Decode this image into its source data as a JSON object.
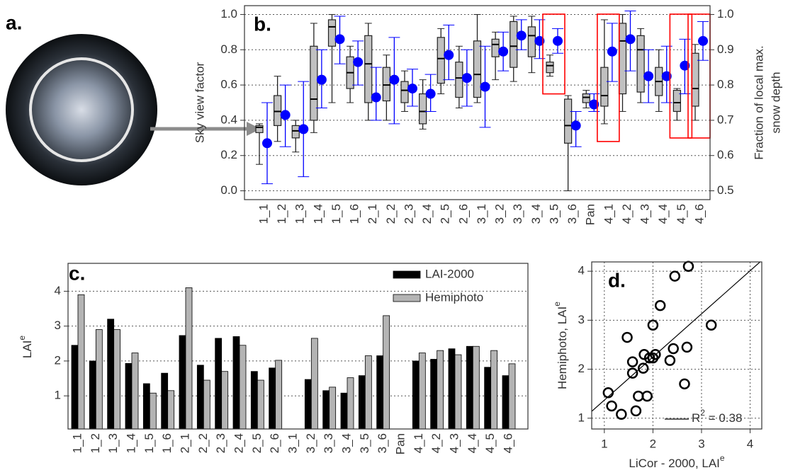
{
  "chart_data": [
    {
      "type": "image",
      "label": "a."
    },
    {
      "type": "box",
      "label": "b.",
      "ylabel": "Sky view factor",
      "y2label": [
        "Fraction of local max.",
        "snow depth"
      ],
      "categories": [
        "1_1",
        "1_2",
        "1_3",
        "1_4",
        "1_5",
        "1_6",
        "2_1",
        "2_2",
        "2_3",
        "2_4",
        "2_5",
        "2_6",
        "3_1",
        "3_2",
        "3_3",
        "3_4",
        "3_5",
        "3_6",
        "Pan",
        "4_1",
        "4_2",
        "4_3",
        "4_4",
        "4_5",
        "4_6"
      ],
      "boxes": {
        "color": "#c0c0c0",
        "whisker_low": [
          0.15,
          0.28,
          0.22,
          0.33,
          0.5,
          0.5,
          0.4,
          0.4,
          0.45,
          0.35,
          0.55,
          0.47,
          0.5,
          0.63,
          0.62,
          0.67,
          0.65,
          0.0,
          0.47,
          0.38,
          0.45,
          0.5,
          0.45,
          0.4,
          0.4
        ],
        "q1": [
          0.33,
          0.37,
          0.3,
          0.4,
          0.82,
          0.58,
          0.5,
          0.51,
          0.5,
          0.38,
          0.61,
          0.53,
          0.53,
          0.76,
          0.7,
          0.76,
          0.67,
          0.27,
          0.5,
          0.48,
          0.55,
          0.56,
          0.54,
          0.45,
          0.48
        ],
        "median": [
          0.36,
          0.45,
          0.34,
          0.52,
          0.93,
          0.67,
          0.72,
          0.6,
          0.57,
          0.45,
          0.75,
          0.64,
          0.66,
          0.83,
          0.82,
          0.88,
          0.71,
          0.37,
          0.53,
          0.54,
          0.85,
          0.8,
          0.62,
          0.5,
          0.58
        ],
        "q3": [
          0.37,
          0.54,
          0.37,
          0.82,
          0.97,
          0.76,
          0.88,
          0.7,
          0.62,
          0.55,
          0.87,
          0.73,
          0.85,
          0.86,
          0.96,
          0.93,
          0.73,
          0.52,
          0.55,
          0.7,
          0.95,
          0.88,
          0.7,
          0.57,
          0.78
        ],
        "whisker_high": [
          0.38,
          0.65,
          0.4,
          0.95,
          1.0,
          0.82,
          0.95,
          0.77,
          0.68,
          0.63,
          0.92,
          0.82,
          1.0,
          0.9,
          0.99,
          0.99,
          0.77,
          0.54,
          0.57,
          0.97,
          1.0,
          0.92,
          0.8,
          0.58,
          0.83
        ]
      },
      "points": {
        "axis": "y2",
        "color": "#0000ff",
        "values": [
          0.635,
          0.715,
          0.675,
          0.815,
          0.93,
          0.865,
          0.765,
          0.815,
          0.79,
          0.775,
          0.885,
          0.82,
          0.795,
          0.895,
          0.94,
          0.925,
          0.925,
          0.685,
          0.745,
          0.895,
          0.93,
          0.825,
          0.825,
          0.855,
          0.925
        ],
        "low": [
          0.52,
          0.625,
          0.54,
          0.735,
          0.86,
          0.8,
          0.7,
          0.69,
          0.74,
          0.725,
          0.815,
          0.74,
          0.68,
          0.84,
          0.9,
          0.875,
          0.89,
          0.625,
          0.725,
          0.81,
          0.84,
          0.75,
          0.75,
          0.775,
          0.87
        ],
        "high": [
          0.75,
          0.8,
          0.81,
          0.9,
          0.995,
          0.925,
          0.85,
          0.935,
          0.845,
          0.83,
          0.97,
          0.9,
          0.91,
          0.95,
          0.985,
          0.985,
          0.96,
          0.725,
          0.775,
          0.975,
          1.01,
          0.9,
          0.91,
          0.93,
          0.98
        ]
      },
      "highlight": [
        16,
        19,
        23,
        24
      ],
      "highlight_color": "#ff0000",
      "ylim": [
        -0.05,
        1.05
      ],
      "yticks": [
        {
          "value": 0,
          "label": "0.0"
        },
        0.2,
        0.4,
        0.6,
        0.8,
        {
          "value": 1,
          "label": "1.0"
        }
      ],
      "y2lim": [
        0.475,
        1.025
      ],
      "y2ticks": [
        0.5,
        0.6,
        0.7,
        0.8,
        0.9,
        {
          "value": 1,
          "label": "1.0"
        }
      ],
      "grid": true
    },
    {
      "type": "bar",
      "label": "c.",
      "ylabel": {
        "text": "LAI",
        "sup": "e"
      },
      "categories": [
        "1_1",
        "1_2",
        "1_3",
        "1_4",
        "1_5",
        "1_6",
        "2_1",
        "2_2",
        "2_3",
        "2_4",
        "2_5",
        "2_6",
        "3_1",
        "3_2",
        "3_3",
        "3_4",
        "3_5",
        "3_6",
        "Pan",
        "4_1",
        "4_2",
        "4_3",
        "4_4",
        "4_5",
        "4_6"
      ],
      "series": [
        {
          "name": "LAI-2000",
          "color": "#000000",
          "values": [
            2.45,
            2.0,
            3.2,
            1.93,
            1.35,
            1.65,
            2.73,
            1.88,
            2.65,
            2.7,
            1.7,
            1.8,
            null,
            1.47,
            1.15,
            1.08,
            1.58,
            2.15,
            null,
            2.0,
            2.05,
            2.35,
            2.42,
            1.82,
            1.58
          ]
        },
        {
          "name": "Hemiphoto",
          "color": "#b4b4b4",
          "values": [
            3.9,
            2.9,
            2.9,
            2.23,
            1.08,
            1.15,
            4.1,
            1.45,
            1.7,
            2.45,
            1.45,
            2.02,
            null,
            2.65,
            1.25,
            1.52,
            2.15,
            3.3,
            null,
            2.23,
            2.3,
            2.18,
            2.42,
            2.3,
            1.92
          ]
        }
      ],
      "ylim": [
        0.05,
        4.8
      ],
      "yticks": [
        1,
        2,
        3,
        4
      ],
      "grid": true,
      "legend": "top-right"
    },
    {
      "type": "scatter",
      "label": "d.",
      "xlabel": {
        "text": "LiCor - 2000, LAI",
        "sup": "e"
      },
      "ylabel": {
        "text": "Hemiphoto, LAI",
        "sup": "e"
      },
      "x": [
        2.45,
        2.0,
        3.2,
        1.93,
        1.35,
        1.65,
        2.73,
        1.88,
        2.65,
        2.7,
        1.7,
        1.8,
        1.47,
        1.15,
        1.08,
        1.58,
        2.15,
        2.0,
        2.05,
        2.35,
        2.42,
        1.82,
        1.58
      ],
      "y": [
        3.9,
        2.9,
        2.9,
        2.23,
        1.08,
        1.15,
        4.1,
        1.45,
        1.7,
        2.45,
        1.45,
        2.02,
        2.65,
        1.25,
        1.52,
        2.15,
        3.3,
        2.23,
        2.3,
        2.18,
        2.42,
        2.3,
        1.92
      ],
      "color": "#000000",
      "fit": {
        "slope": 0.88,
        "intercept": 0.49,
        "label": {
          "text": "R",
          "sup": "2",
          "rest": " = 0.38"
        }
      },
      "xlim": [
        0.74,
        4.24
      ],
      "ylim": [
        0.78,
        4.19
      ],
      "xticks": [
        1,
        2,
        3,
        4
      ],
      "yticks": [
        1,
        2,
        3,
        4
      ],
      "grid": true
    }
  ]
}
